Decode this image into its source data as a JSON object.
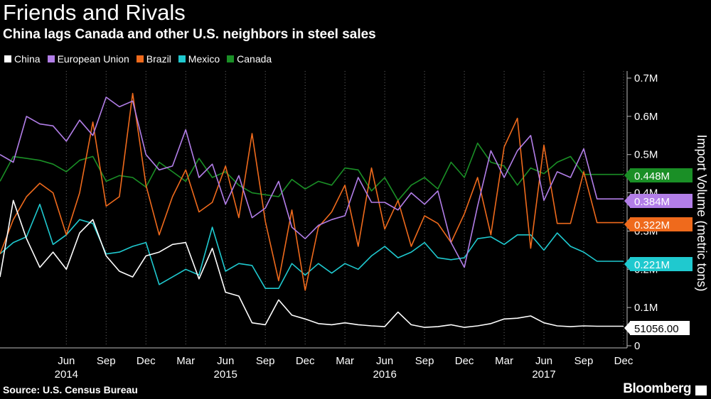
{
  "title": "Friends and Rivals",
  "subtitle": "China lags Canada and other U.S. neighbors in steel sales",
  "source": "Source: U.S. Census Bureau",
  "brand": "Bloomberg",
  "colors": {
    "China": "#ffffff",
    "European Union": "#b27ee8",
    "Brazil": "#ef6a1c",
    "Mexico": "#1fc9cf",
    "Canada": "#1a8f26"
  },
  "chart_data": {
    "type": "line",
    "title": "Friends and Rivals",
    "subtitle": "China lags Canada and other U.S. neighbors in steel sales",
    "xlabel": "",
    "ylabel": "Import Volume (metric tons)",
    "ylim": [
      0,
      700000
    ],
    "y_ticks": [
      0,
      100000,
      200000,
      300000,
      400000,
      500000,
      600000,
      700000
    ],
    "y_tick_labels": [
      "0",
      "0.1M",
      "0.2M",
      "0.3M",
      "0.4M",
      "0.5M",
      "0.6M",
      "0.7M"
    ],
    "x_range": [
      "2014-01",
      "2017-12"
    ],
    "x": [
      "2014-01",
      "2014-02",
      "2014-03",
      "2014-04",
      "2014-05",
      "2014-06",
      "2014-07",
      "2014-08",
      "2014-09",
      "2014-10",
      "2014-11",
      "2014-12",
      "2015-01",
      "2015-02",
      "2015-03",
      "2015-04",
      "2015-05",
      "2015-06",
      "2015-07",
      "2015-08",
      "2015-09",
      "2015-10",
      "2015-11",
      "2015-12",
      "2016-01",
      "2016-02",
      "2016-03",
      "2016-04",
      "2016-05",
      "2016-06",
      "2016-07",
      "2016-08",
      "2016-09",
      "2016-10",
      "2016-11",
      "2016-12",
      "2017-01",
      "2017-02",
      "2017-03",
      "2017-04",
      "2017-05",
      "2017-06",
      "2017-07",
      "2017-08",
      "2017-09",
      "2017-10",
      "2017-11",
      "2017-12"
    ],
    "month_ticks": [
      {
        "x": "2014-06",
        "label": "Jun"
      },
      {
        "x": "2014-09",
        "label": "Sep"
      },
      {
        "x": "2014-12",
        "label": "Dec"
      },
      {
        "x": "2015-03",
        "label": "Mar"
      },
      {
        "x": "2015-06",
        "label": "Jun"
      },
      {
        "x": "2015-09",
        "label": "Sep"
      },
      {
        "x": "2015-12",
        "label": "Dec"
      },
      {
        "x": "2016-03",
        "label": "Mar"
      },
      {
        "x": "2016-06",
        "label": "Jun"
      },
      {
        "x": "2016-09",
        "label": "Sep"
      },
      {
        "x": "2016-12",
        "label": "Dec"
      },
      {
        "x": "2017-03",
        "label": "Mar"
      },
      {
        "x": "2017-06",
        "label": "Jun"
      },
      {
        "x": "2017-09",
        "label": "Sep"
      },
      {
        "x": "2017-12",
        "label": "Dec"
      }
    ],
    "year_ticks": [
      {
        "x": "2014-06",
        "label": "2014"
      },
      {
        "x": "2015-06",
        "label": "2015"
      },
      {
        "x": "2016-06",
        "label": "2016"
      },
      {
        "x": "2017-06",
        "label": "2017"
      }
    ],
    "legend_placement": "top-left",
    "grid": "vertical",
    "series": [
      {
        "name": "China",
        "end_label": "51056.00",
        "values": [
          180000,
          380000,
          280000,
          205000,
          245000,
          200000,
          295000,
          330000,
          235000,
          195000,
          180000,
          235000,
          245000,
          265000,
          270000,
          175000,
          255000,
          140000,
          130000,
          60000,
          55000,
          120000,
          80000,
          70000,
          58000,
          55000,
          60000,
          55000,
          52000,
          50000,
          88000,
          55000,
          48000,
          50000,
          55000,
          48000,
          52000,
          58000,
          70000,
          72000,
          78000,
          60000,
          52000,
          50000,
          52000,
          51056,
          51056,
          51056
        ]
      },
      {
        "name": "European Union",
        "end_label": "0.384M",
        "values": [
          500000,
          480000,
          600000,
          580000,
          575000,
          535000,
          590000,
          550000,
          650000,
          625000,
          640000,
          500000,
          460000,
          470000,
          565000,
          440000,
          475000,
          370000,
          445000,
          335000,
          360000,
          430000,
          310000,
          280000,
          315000,
          330000,
          340000,
          440000,
          375000,
          375000,
          355000,
          400000,
          370000,
          405000,
          270000,
          205000,
          365000,
          510000,
          440000,
          510000,
          550000,
          380000,
          455000,
          440000,
          515000,
          384000,
          384000,
          384000
        ]
      },
      {
        "name": "Brazil",
        "end_label": "0.322M",
        "values": [
          240000,
          330000,
          390000,
          425000,
          400000,
          290000,
          400000,
          585000,
          365000,
          390000,
          660000,
          420000,
          290000,
          390000,
          460000,
          350000,
          375000,
          470000,
          335000,
          555000,
          325000,
          170000,
          355000,
          145000,
          310000,
          350000,
          420000,
          260000,
          465000,
          305000,
          380000,
          260000,
          340000,
          320000,
          270000,
          345000,
          440000,
          290000,
          520000,
          595000,
          255000,
          525000,
          320000,
          320000,
          455000,
          322000,
          322000,
          322000
        ]
      },
      {
        "name": "Mexico",
        "end_label": "0.221M",
        "values": [
          240000,
          270000,
          285000,
          370000,
          265000,
          290000,
          330000,
          320000,
          240000,
          245000,
          260000,
          270000,
          160000,
          180000,
          200000,
          185000,
          310000,
          195000,
          215000,
          210000,
          150000,
          150000,
          215000,
          185000,
          215000,
          190000,
          215000,
          200000,
          235000,
          260000,
          230000,
          245000,
          270000,
          230000,
          225000,
          230000,
          280000,
          285000,
          265000,
          290000,
          290000,
          250000,
          295000,
          260000,
          245000,
          221000,
          221000,
          221000
        ]
      },
      {
        "name": "Canada",
        "end_label": "0.448M",
        "values": [
          430000,
          495000,
          490000,
          485000,
          475000,
          455000,
          485000,
          495000,
          430000,
          445000,
          440000,
          415000,
          480000,
          455000,
          430000,
          490000,
          440000,
          455000,
          420000,
          400000,
          395000,
          390000,
          435000,
          410000,
          430000,
          420000,
          465000,
          460000,
          405000,
          440000,
          380000,
          420000,
          440000,
          410000,
          480000,
          440000,
          530000,
          480000,
          470000,
          420000,
          465000,
          450000,
          480000,
          495000,
          448000,
          448000,
          448000,
          448000
        ]
      }
    ]
  }
}
